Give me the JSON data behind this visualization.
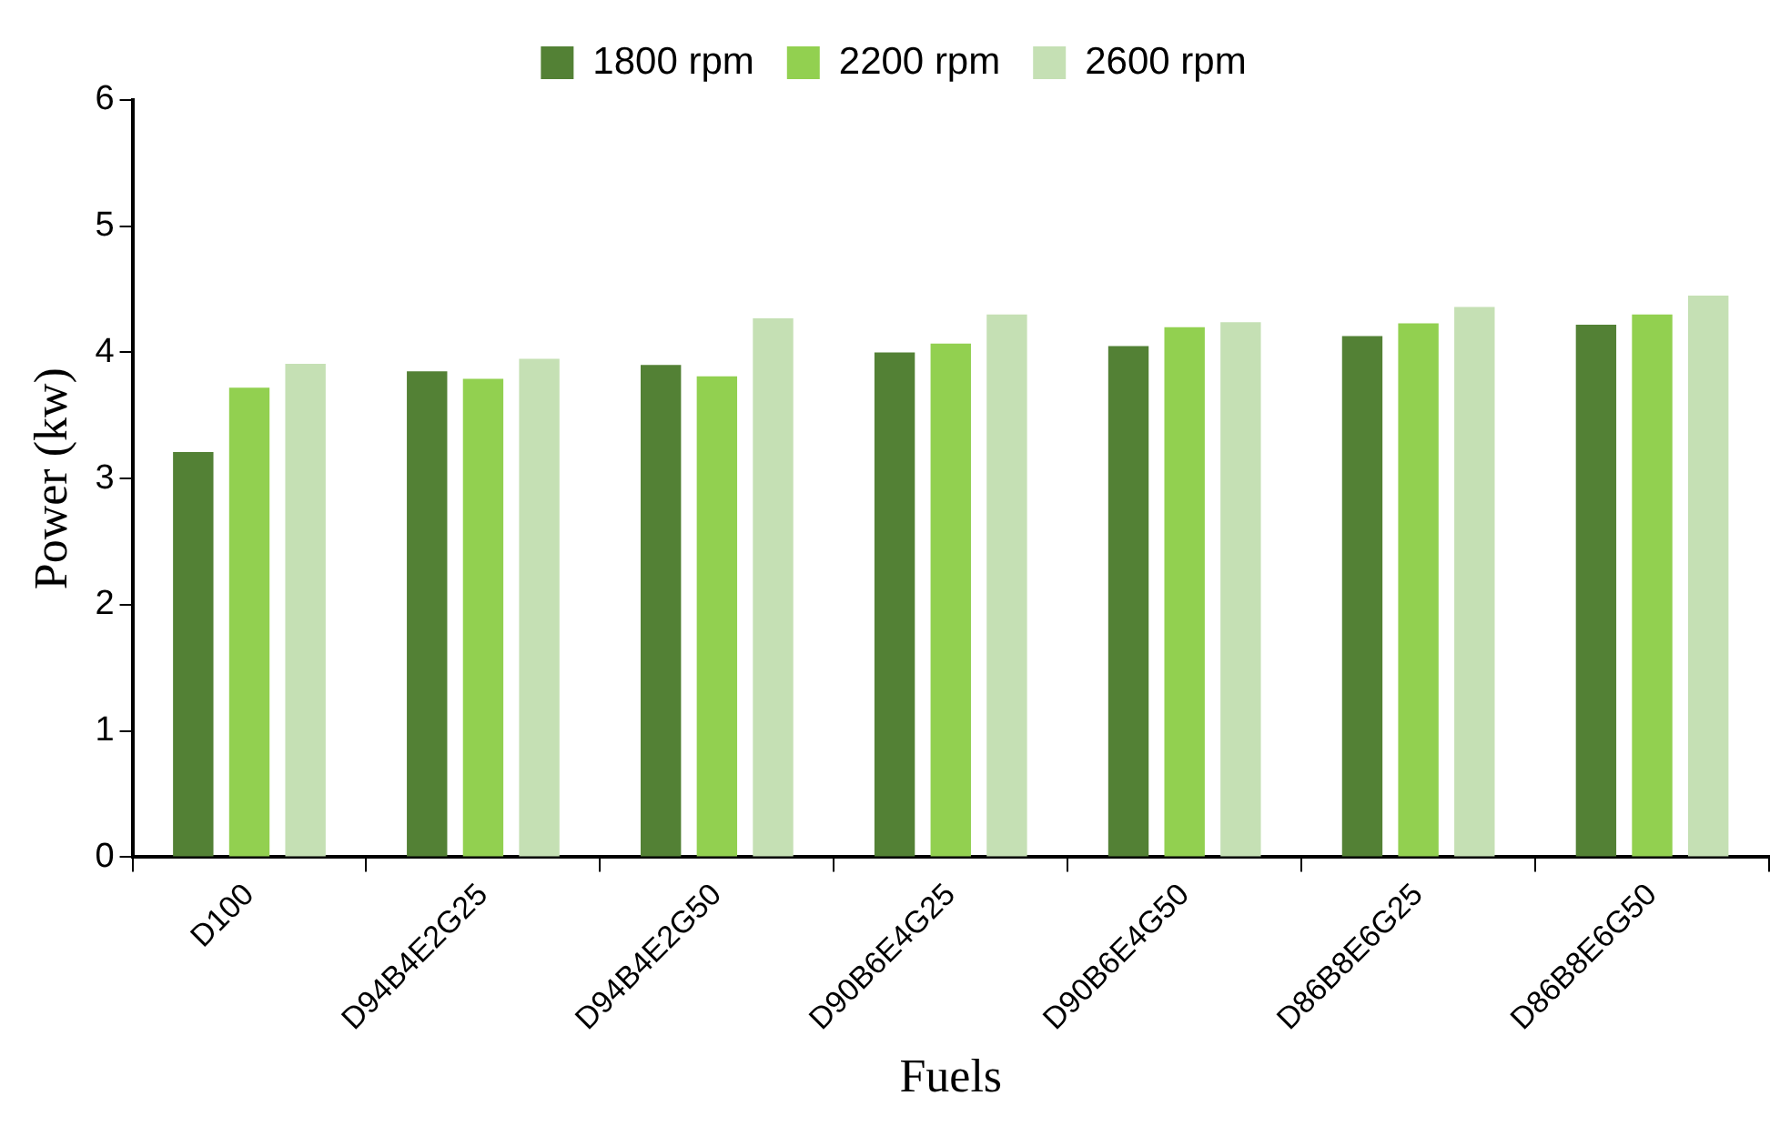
{
  "chart_data": {
    "type": "bar",
    "xlabel": "Fuels",
    "ylabel": "Power (kw)",
    "categories": [
      "D100",
      "D94B4E2G25",
      "D94B4E2G50",
      "D90B6E4G25",
      "D90B6E4G50",
      "D86B8E6G25",
      "D86B8E6G50"
    ],
    "series": [
      {
        "name": "1800 rpm",
        "color": "#538135",
        "values": [
          3.21,
          3.85,
          3.9,
          4.0,
          4.05,
          4.13,
          4.22
        ]
      },
      {
        "name": "2200 rpm",
        "color": "#92d050",
        "values": [
          3.72,
          3.79,
          3.81,
          4.07,
          4.2,
          4.23,
          4.3
        ]
      },
      {
        "name": "2600 rpm",
        "color": "#c5e0b4",
        "values": [
          3.91,
          3.95,
          4.27,
          4.3,
          4.24,
          4.36,
          4.45
        ]
      }
    ],
    "ylim": [
      0,
      6
    ],
    "yticks": [
      0,
      1,
      2,
      3,
      4,
      5,
      6
    ],
    "grid": false,
    "legend": "top"
  }
}
